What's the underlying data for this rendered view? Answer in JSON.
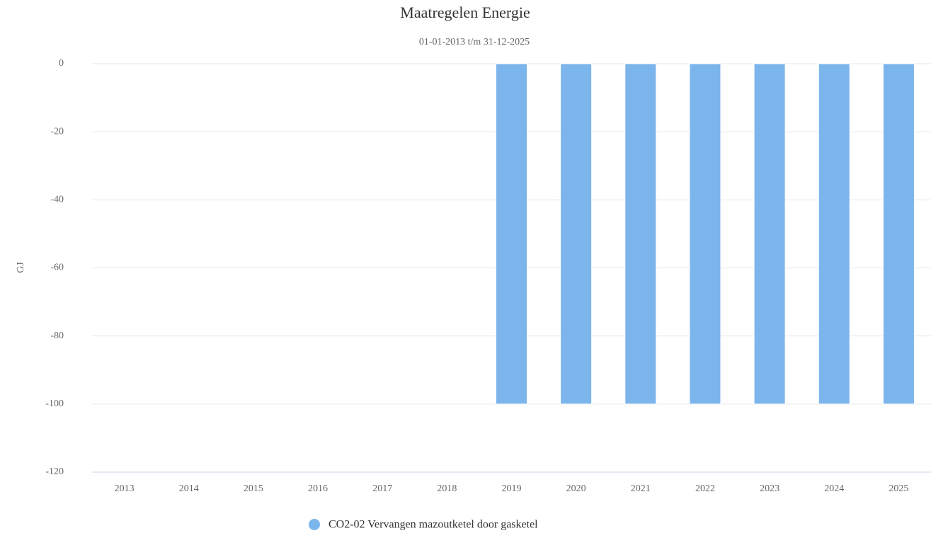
{
  "chart_data": {
    "type": "bar",
    "title": "Maatregelen Energie",
    "subtitle": "01-01-2013 t/m 31-12-2025",
    "y_label": "GJ",
    "categories": [
      "2013",
      "2014",
      "2015",
      "2016",
      "2017",
      "2018",
      "2019",
      "2020",
      "2021",
      "2022",
      "2023",
      "2024",
      "2025"
    ],
    "series": [
      {
        "name": "CO2-02 Vervangen mazoutketel door gasketel",
        "color": "#7cb5ec",
        "values": [
          null,
          null,
          null,
          null,
          null,
          null,
          -100,
          -100,
          -100,
          -100,
          -100,
          -100,
          -100
        ]
      }
    ],
    "ylim": [
      -120,
      0
    ],
    "yticks": [
      0,
      -20,
      -40,
      -60,
      -80,
      -100,
      -120
    ],
    "grid": true,
    "legend": "bottom"
  }
}
